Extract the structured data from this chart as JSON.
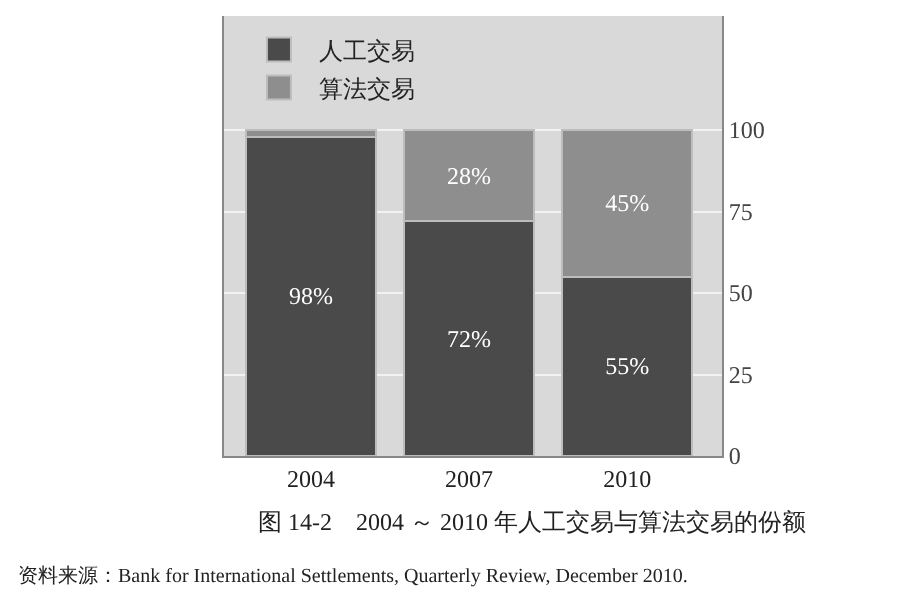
{
  "chart_data": {
    "type": "bar",
    "stacked": true,
    "title": "图 14-2　2004 ～ 2010 年人工交易与算法交易的份额",
    "categories": [
      "2004",
      "2007",
      "2010"
    ],
    "series": [
      {
        "name": "人工交易",
        "color": "#4a4a4a",
        "values": [
          98,
          72,
          55
        ],
        "value_labels": [
          "98%",
          "72%",
          "55%"
        ]
      },
      {
        "name": "算法交易",
        "color": "#8e8e8e",
        "values": [
          2,
          28,
          45
        ],
        "value_labels": [
          null,
          "28%",
          "45%"
        ]
      }
    ],
    "ylim": [
      0,
      135
    ],
    "yticks": [
      0,
      25,
      50,
      75,
      100
    ],
    "grid": "y",
    "legend": "top left",
    "annotations": [
      "资料来源：Bank for International Settlements, Quarterly Review, December 2010."
    ]
  }
}
